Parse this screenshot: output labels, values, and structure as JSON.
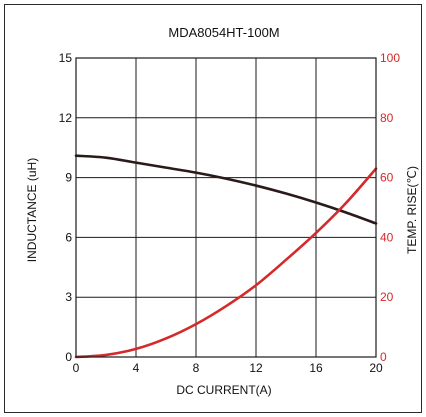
{
  "chart_data": {
    "type": "line",
    "title": "MDA8054HT-100M",
    "xlabel": "DC CURRENT(A)",
    "ylabel": "INDUCTANCE (uH)",
    "ylabel_right": "TEMP. RISE(℃)",
    "xlim": [
      0,
      20
    ],
    "ylim": [
      0,
      15
    ],
    "ylim_right": [
      0,
      100
    ],
    "x_ticks": [
      "0",
      "4",
      "8",
      "12",
      "16",
      "20"
    ],
    "y_ticks": [
      "0",
      "3",
      "6",
      "9",
      "12",
      "15"
    ],
    "y_ticks_right": [
      "0",
      "20",
      "40",
      "60",
      "80",
      "100"
    ],
    "grid": true,
    "colors": {
      "inductance": "#2a1a1a",
      "temp_rise": "#d42a2a",
      "grid": "#1a1a1a"
    },
    "series": [
      {
        "axis": "left",
        "x": [
          0,
          2,
          4,
          6,
          8,
          10,
          12,
          14,
          16,
          18,
          20
        ],
        "values": [
          10.1,
          10.0,
          9.75,
          9.5,
          9.25,
          8.95,
          8.6,
          8.2,
          7.75,
          7.25,
          6.7
        ]
      },
      {
        "axis": "right",
        "x": [
          0,
          2,
          4,
          6,
          8,
          10,
          12,
          14,
          16,
          18,
          20
        ],
        "values": [
          0,
          0.7,
          2.7,
          6.2,
          11,
          17,
          24,
          32.5,
          41.5,
          51.5,
          63
        ]
      }
    ]
  }
}
